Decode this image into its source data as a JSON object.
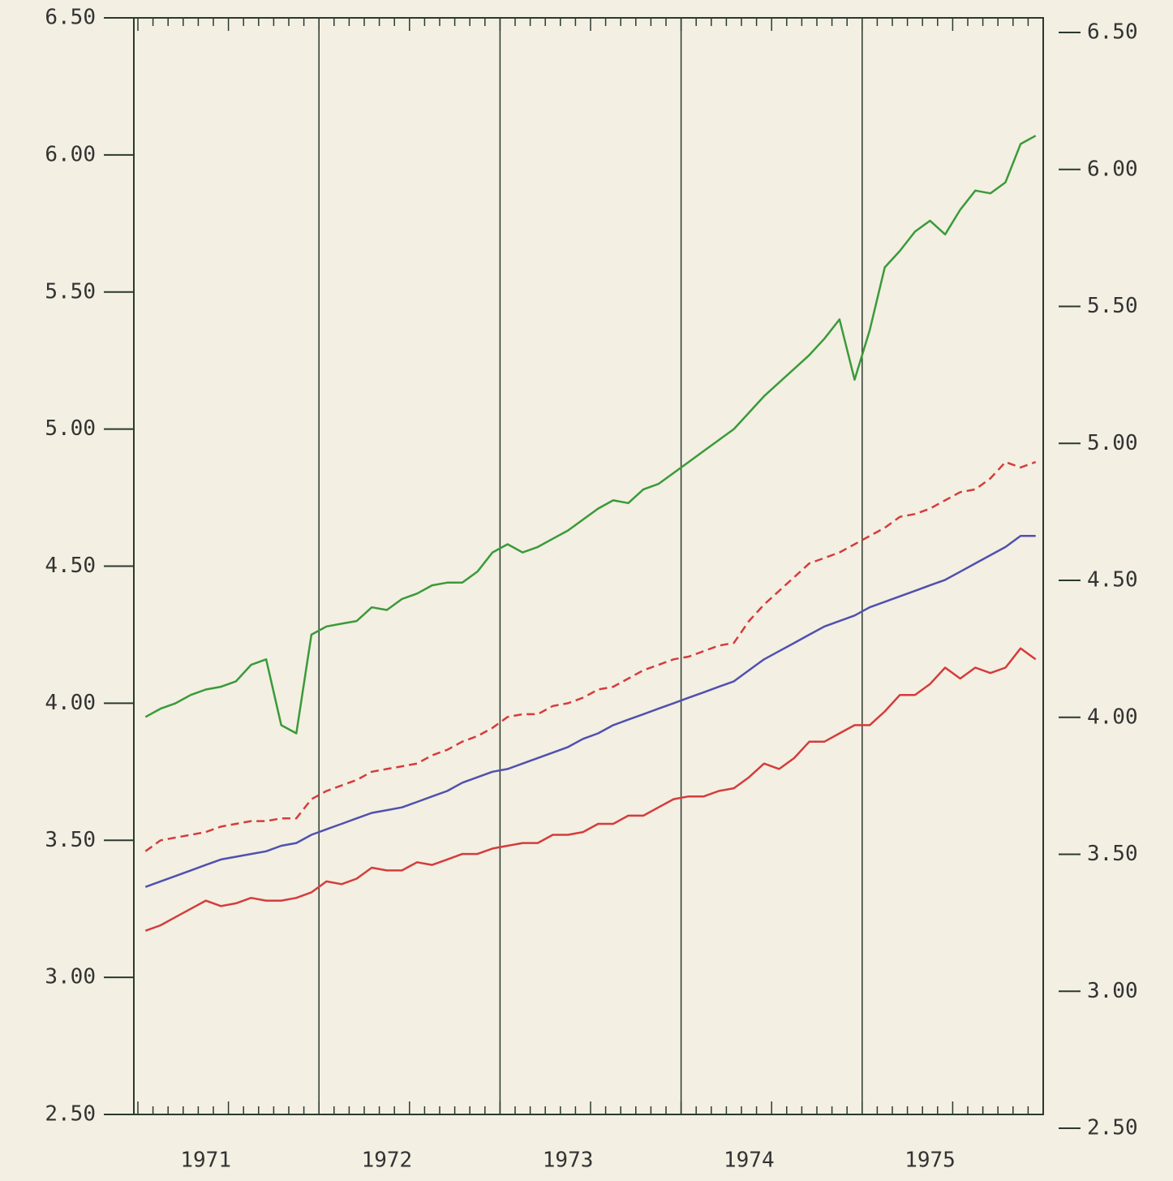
{
  "chart_data": {
    "type": "line",
    "categories": [
      null,
      null,
      null,
      null,
      "1971",
      null,
      null,
      null,
      null,
      null,
      null,
      null,
      null,
      null,
      null,
      null,
      "1972",
      null,
      null,
      null,
      null,
      null,
      null,
      null,
      null,
      null,
      null,
      null,
      "1973",
      null,
      null,
      null,
      null,
      null,
      null,
      null,
      null,
      null,
      null,
      null,
      "1974",
      null,
      null,
      null,
      null,
      null,
      null,
      null,
      null,
      null,
      null,
      null,
      "1975",
      null,
      null,
      null,
      null,
      null,
      null,
      null
    ],
    "ylim": [
      2.5,
      6.5
    ],
    "yticks": [
      {
        "value": 2.5,
        "label": "2.50"
      },
      {
        "value": 3,
        "label": "3.00"
      },
      {
        "value": 3.5,
        "label": "3.50"
      },
      {
        "value": 4,
        "label": "4.00"
      },
      {
        "value": 4.5,
        "label": "4.50"
      },
      {
        "value": 5,
        "label": "5.00"
      },
      {
        "value": 5.5,
        "label": "5.50"
      },
      {
        "value": 6,
        "label": "6.00"
      },
      {
        "value": 6.5,
        "label": "6.50"
      }
    ],
    "series": [
      {
        "color": "#3a9a3a",
        "dash": false,
        "values": [
          3.95,
          3.98,
          4.0,
          4.03,
          4.05,
          4.06,
          4.08,
          4.14,
          4.16,
          3.92,
          3.89,
          4.25,
          4.28,
          4.29,
          4.3,
          4.35,
          4.34,
          4.38,
          4.4,
          4.43,
          4.44,
          4.44,
          4.48,
          4.55,
          4.58,
          4.55,
          4.57,
          4.6,
          4.63,
          4.67,
          4.71,
          4.74,
          4.73,
          4.78,
          4.8,
          4.84,
          4.88,
          4.92,
          4.96,
          5.0,
          5.06,
          5.12,
          5.17,
          5.22,
          5.27,
          5.33,
          5.4,
          5.18,
          5.36,
          5.59,
          5.65,
          5.72,
          5.76,
          5.71,
          5.8,
          5.87,
          5.86,
          5.9,
          6.04,
          6.07
        ]
      },
      {
        "color": "#d43c3c",
        "dash": true,
        "values": [
          3.46,
          3.5,
          3.51,
          3.52,
          3.53,
          3.55,
          3.56,
          3.57,
          3.57,
          3.58,
          3.58,
          3.65,
          3.68,
          3.7,
          3.72,
          3.75,
          3.76,
          3.77,
          3.78,
          3.81,
          3.83,
          3.86,
          3.88,
          3.91,
          3.95,
          3.96,
          3.96,
          3.99,
          4.0,
          4.02,
          4.05,
          4.06,
          4.09,
          4.12,
          4.14,
          4.16,
          4.17,
          4.19,
          4.21,
          4.22,
          4.3,
          4.36,
          4.41,
          4.46,
          4.51,
          4.53,
          4.55,
          4.58,
          4.61,
          4.64,
          4.68,
          4.69,
          4.71,
          4.74,
          4.77,
          4.78,
          4.82,
          4.88,
          4.86,
          4.88
        ]
      },
      {
        "color": "#5050b0",
        "dash": false,
        "values": [
          3.33,
          3.35,
          3.37,
          3.39,
          3.41,
          3.43,
          3.44,
          3.45,
          3.46,
          3.48,
          3.49,
          3.52,
          3.54,
          3.56,
          3.58,
          3.6,
          3.61,
          3.62,
          3.64,
          3.66,
          3.68,
          3.71,
          3.73,
          3.75,
          3.76,
          3.78,
          3.8,
          3.82,
          3.84,
          3.87,
          3.89,
          3.92,
          3.94,
          3.96,
          3.98,
          4.0,
          4.02,
          4.04,
          4.06,
          4.08,
          4.12,
          4.16,
          4.19,
          4.22,
          4.25,
          4.28,
          4.3,
          4.32,
          4.35,
          4.37,
          4.39,
          4.41,
          4.43,
          4.45,
          4.48,
          4.51,
          4.54,
          4.57,
          4.61,
          4.61
        ]
      },
      {
        "color": "#d43c3c",
        "dash": false,
        "values": [
          3.17,
          3.19,
          3.22,
          3.25,
          3.28,
          3.26,
          3.27,
          3.29,
          3.28,
          3.28,
          3.29,
          3.31,
          3.35,
          3.34,
          3.36,
          3.4,
          3.39,
          3.39,
          3.42,
          3.41,
          3.43,
          3.45,
          3.45,
          3.47,
          3.48,
          3.49,
          3.49,
          3.52,
          3.52,
          3.53,
          3.56,
          3.56,
          3.59,
          3.59,
          3.62,
          3.65,
          3.66,
          3.66,
          3.68,
          3.69,
          3.73,
          3.78,
          3.76,
          3.8,
          3.86,
          3.86,
          3.89,
          3.92,
          3.92,
          3.97,
          4.03,
          4.03,
          4.07,
          4.13,
          4.09,
          4.13,
          4.11,
          4.13,
          4.2,
          4.16
        ]
      }
    ]
  }
}
